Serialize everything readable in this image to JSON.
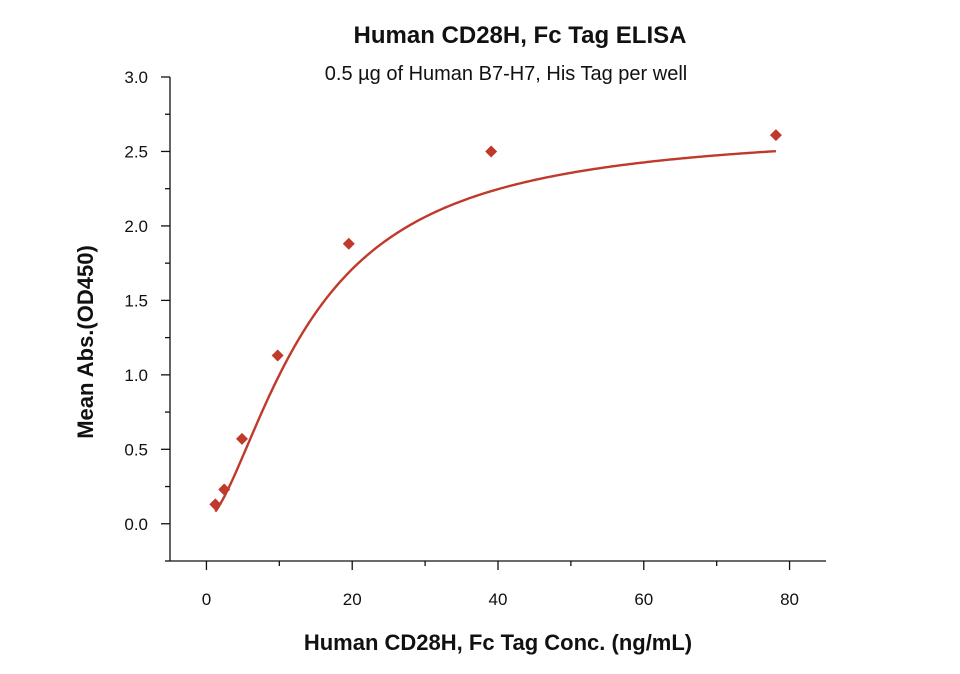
{
  "chart_data": {
    "type": "scatter",
    "title": "Human CD28H, Fc Tag ELISA",
    "subtitle": "0.5 µg of Human B7-H7, His Tag per well",
    "xlabel": "Human CD28H, Fc Tag Conc. (ng/mL)",
    "ylabel": "Mean Abs.(OD450)",
    "xlim": [
      -5,
      85
    ],
    "ylim": [
      -0.25,
      3.0
    ],
    "x_ticks": [
      0,
      20,
      40,
      60,
      80
    ],
    "y_ticks": [
      0.0,
      0.5,
      1.0,
      1.5,
      2.0,
      2.5,
      3.0
    ],
    "x_tick_labels": [
      "0",
      "20",
      "40",
      "60",
      "80"
    ],
    "y_tick_labels": [
      "0.0",
      "0.5",
      "1.0",
      "1.5",
      "2.0",
      "2.5",
      "3.0"
    ],
    "grid": false,
    "series": [
      {
        "marker": "diamond",
        "color": "#c0392b",
        "x": [
          1.22,
          2.44,
          4.88,
          9.77,
          19.53,
          39.06,
          78.13
        ],
        "y": [
          0.13,
          0.23,
          0.57,
          1.13,
          1.88,
          2.5,
          2.61
        ]
      }
    ],
    "fit_curve": {
      "type": "4PL",
      "color": "#c0392b",
      "bottom": 0.03,
      "top": 2.66,
      "ec50": 14.0,
      "hill": 1.6
    }
  }
}
